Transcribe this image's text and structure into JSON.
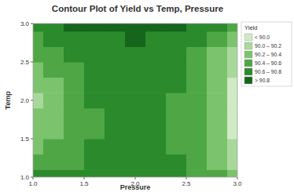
{
  "chart_data": {
    "type": "contour",
    "title": "Contour Plot of Yield vs Temp, Pressure",
    "x_label": "Pressure",
    "y_label": "Temp",
    "legend_title": "Yield",
    "x": [
      1.0,
      1.2,
      1.4,
      1.6,
      1.8,
      2.0,
      2.2,
      2.4,
      2.6,
      2.8,
      3.0
    ],
    "y": [
      1.0,
      1.2,
      1.4,
      1.6,
      1.8,
      2.0,
      2.2,
      2.4,
      2.6,
      2.8,
      3.0
    ],
    "z": [
      [
        90.64,
        90.64,
        90.65,
        90.67,
        90.68,
        90.69,
        90.68,
        90.65,
        90.59,
        90.49,
        90.34
      ],
      [
        90.47,
        90.53,
        90.58,
        90.63,
        90.67,
        90.68,
        90.67,
        90.61,
        90.52,
        90.37,
        90.17
      ],
      [
        90.34,
        90.44,
        90.53,
        90.61,
        90.66,
        90.68,
        90.66,
        90.59,
        90.47,
        90.29,
        90.04
      ],
      [
        90.25,
        90.39,
        90.5,
        90.6,
        90.66,
        90.68,
        90.66,
        90.58,
        90.44,
        90.23,
        89.95
      ],
      [
        90.21,
        90.36,
        90.49,
        90.6,
        90.66,
        90.69,
        90.66,
        90.58,
        90.43,
        90.21,
        89.91
      ],
      [
        90.2,
        90.36,
        90.5,
        90.61,
        90.68,
        90.7,
        90.67,
        90.59,
        90.43,
        90.21,
        89.9
      ],
      [
        90.24,
        90.39,
        90.52,
        90.63,
        90.69,
        90.72,
        90.69,
        90.61,
        90.46,
        90.24,
        89.94
      ],
      [
        90.32,
        90.45,
        90.57,
        90.66,
        90.72,
        90.74,
        90.72,
        90.64,
        90.5,
        90.3,
        90.02
      ],
      [
        90.44,
        90.54,
        90.63,
        90.71,
        90.76,
        90.77,
        90.75,
        90.69,
        90.57,
        90.38,
        90.14
      ],
      [
        90.6,
        90.65,
        90.71,
        90.76,
        90.8,
        90.81,
        90.79,
        90.74,
        90.65,
        90.5,
        90.3
      ],
      [
        90.8,
        90.8,
        90.81,
        90.83,
        90.84,
        90.85,
        90.84,
        90.81,
        90.75,
        90.65,
        90.5
      ]
    ],
    "levels": [
      90.0,
      90.2,
      90.4,
      90.6,
      90.8
    ],
    "level_labels": [
      "< 90.0",
      "90.0 – 90.2",
      "90.2 – 90.4",
      "90.4 – 90.6",
      "90.6 – 90.8",
      "> 90.8"
    ],
    "colors": [
      "#cfeac4",
      "#a8d99b",
      "#7cc36e",
      "#4ea744",
      "#2a8a2c",
      "#15661c"
    ],
    "xlim": [
      1.0,
      3.0
    ],
    "ylim": [
      1.0,
      3.0
    ],
    "xticks": [
      {
        "value": 1,
        "label": "1.0"
      },
      {
        "value": 1.5,
        "label": "1.5"
      },
      {
        "value": 2,
        "label": "2.0"
      },
      {
        "value": 2.5,
        "label": "2.5"
      },
      {
        "value": 3,
        "label": "3.0"
      }
    ],
    "yticks": [
      {
        "value": 1,
        "label": "1.0"
      },
      {
        "value": 1.5,
        "label": "1.5"
      },
      {
        "value": 2,
        "label": "2.0"
      },
      {
        "value": 2.5,
        "label": "2.5"
      },
      {
        "value": 3,
        "label": "3.0"
      }
    ],
    "legend": "right"
  }
}
